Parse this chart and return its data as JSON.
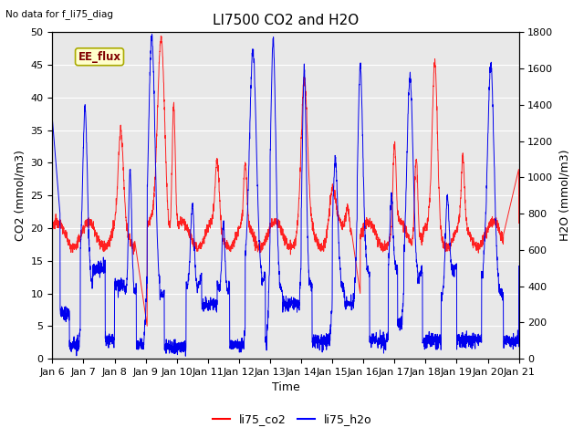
{
  "title": "LI7500 CO2 and H2O",
  "top_left_text": "No data for f_li75_diag",
  "xlabel": "Time",
  "ylabel_left": "CO2 (mmol/m3)",
  "ylabel_right": "H2O (mmol/m3)",
  "ylim_left": [
    0,
    50
  ],
  "ylim_right": [
    0,
    1800
  ],
  "xtick_labels": [
    "Jan 6",
    "Jan 7",
    "Jan 8",
    "Jan 9",
    "Jan 10",
    "Jan 11",
    "Jan 12",
    "Jan 13",
    "Jan 14",
    "Jan 15",
    "Jan 16",
    "Jan 17",
    "Jan 18",
    "Jan 19",
    "Jan 20",
    "Jan 21"
  ],
  "yticks_left": [
    0,
    5,
    10,
    15,
    20,
    25,
    30,
    35,
    40,
    45,
    50
  ],
  "yticks_right": [
    0,
    200,
    400,
    600,
    800,
    1000,
    1200,
    1400,
    1600,
    1800
  ],
  "legend_labels": [
    "li75_co2",
    "li75_h2o"
  ],
  "legend_colors": [
    "#ff0000",
    "#0000ff"
  ],
  "ee_flux_box_color": "#ffffcc",
  "ee_flux_text_color": "#800000",
  "plot_bg_color": "#e8e8e8",
  "fig_bg_color": "#ffffff",
  "grid_color": "#ffffff",
  "co2_color": "#ff2020",
  "h2o_color": "#0000ee",
  "title_fontsize": 11,
  "axis_label_fontsize": 9,
  "tick_fontsize": 8
}
